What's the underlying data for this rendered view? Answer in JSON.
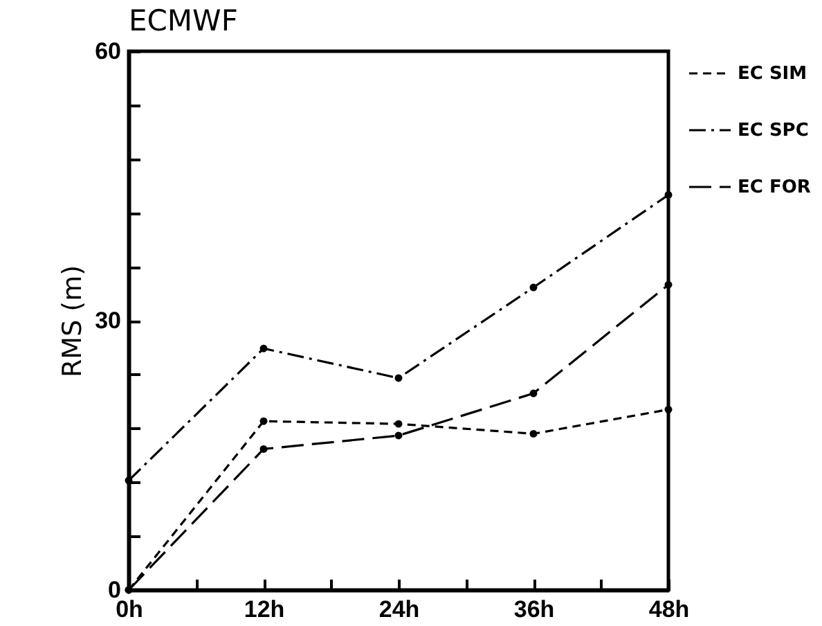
{
  "chart_data": {
    "type": "line",
    "title": "ECMWF",
    "ylabel": "RMS (m)",
    "x": [
      0,
      12,
      24,
      36,
      48
    ],
    "series": [
      {
        "name": "EC SIM",
        "color": "#000000",
        "line_style": "dashed",
        "values": [
          0,
          18.8,
          18.5,
          17.4,
          20.1
        ]
      },
      {
        "name": "EC SPC",
        "color": "#000000",
        "line_style": "dashdot",
        "values": [
          12.2,
          26.9,
          23.6,
          33.7,
          44.0
        ]
      },
      {
        "name": "EC FOR",
        "color": "#000000",
        "line_style": "longdash",
        "values": [
          0,
          15.7,
          17.2,
          21.9,
          34.0
        ]
      }
    ],
    "xlim": [
      0,
      48
    ],
    "xticks": [
      {
        "value": 0,
        "label": "0h"
      },
      {
        "value": 6,
        "label": null
      },
      {
        "value": 12,
        "label": "12h"
      },
      {
        "value": 18,
        "label": null
      },
      {
        "value": 24,
        "label": "24h"
      },
      {
        "value": 30,
        "label": null
      },
      {
        "value": 36,
        "label": "36h"
      },
      {
        "value": 42,
        "label": null
      },
      {
        "value": 48,
        "label": "48h"
      }
    ],
    "ylim": [
      0,
      60
    ],
    "yticks": [
      0,
      {
        "value": 6,
        "label": null
      },
      {
        "value": 12,
        "label": null
      },
      {
        "value": 18,
        "label": null
      },
      {
        "value": 24,
        "label": null
      },
      30,
      {
        "value": 36,
        "label": null
      },
      {
        "value": 42,
        "label": null
      },
      {
        "value": 48,
        "label": null
      },
      {
        "value": 54,
        "label": null
      },
      60
    ],
    "marker": "circle",
    "legend": "top right",
    "grid": false
  }
}
